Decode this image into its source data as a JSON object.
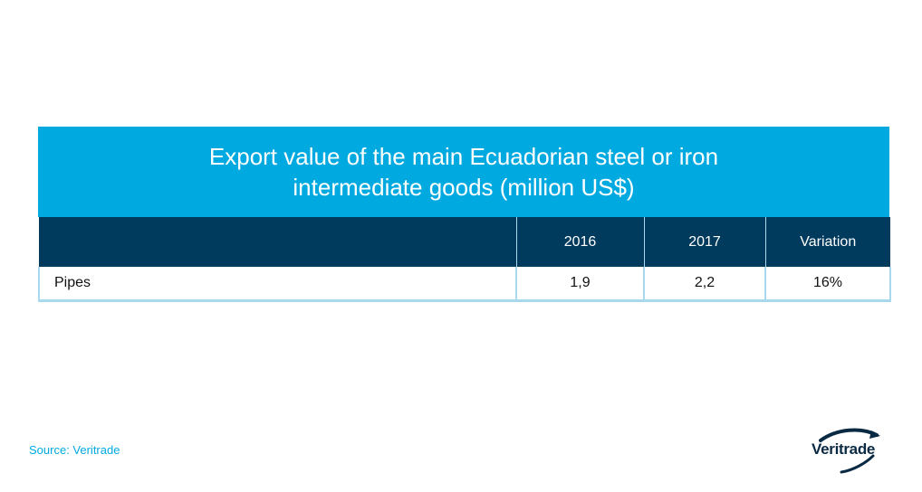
{
  "chart_data": {
    "type": "table",
    "title": "Export value of the main Ecuadorian steel or iron intermediate goods (million US$)",
    "columns": [
      "",
      "2016",
      "2017",
      "Variation"
    ],
    "rows": [
      {
        "label": "Pipes",
        "cells": [
          "1,9",
          "2,2",
          "16%"
        ]
      }
    ],
    "values": {
      "2016": [
        1.9
      ],
      "2017": [
        2.2
      ],
      "Variation_pct": [
        16
      ]
    }
  },
  "source": "Source: Veritrade",
  "logo": {
    "text": "Veritrade",
    "icon": "veritrade-swoosh-icon"
  },
  "colors": {
    "title_bg": "#00a9e0",
    "header_bg": "#003a5d",
    "border": "#a8d9ef",
    "source_text": "#00a9e0",
    "logo_dark": "#0a2a44"
  }
}
